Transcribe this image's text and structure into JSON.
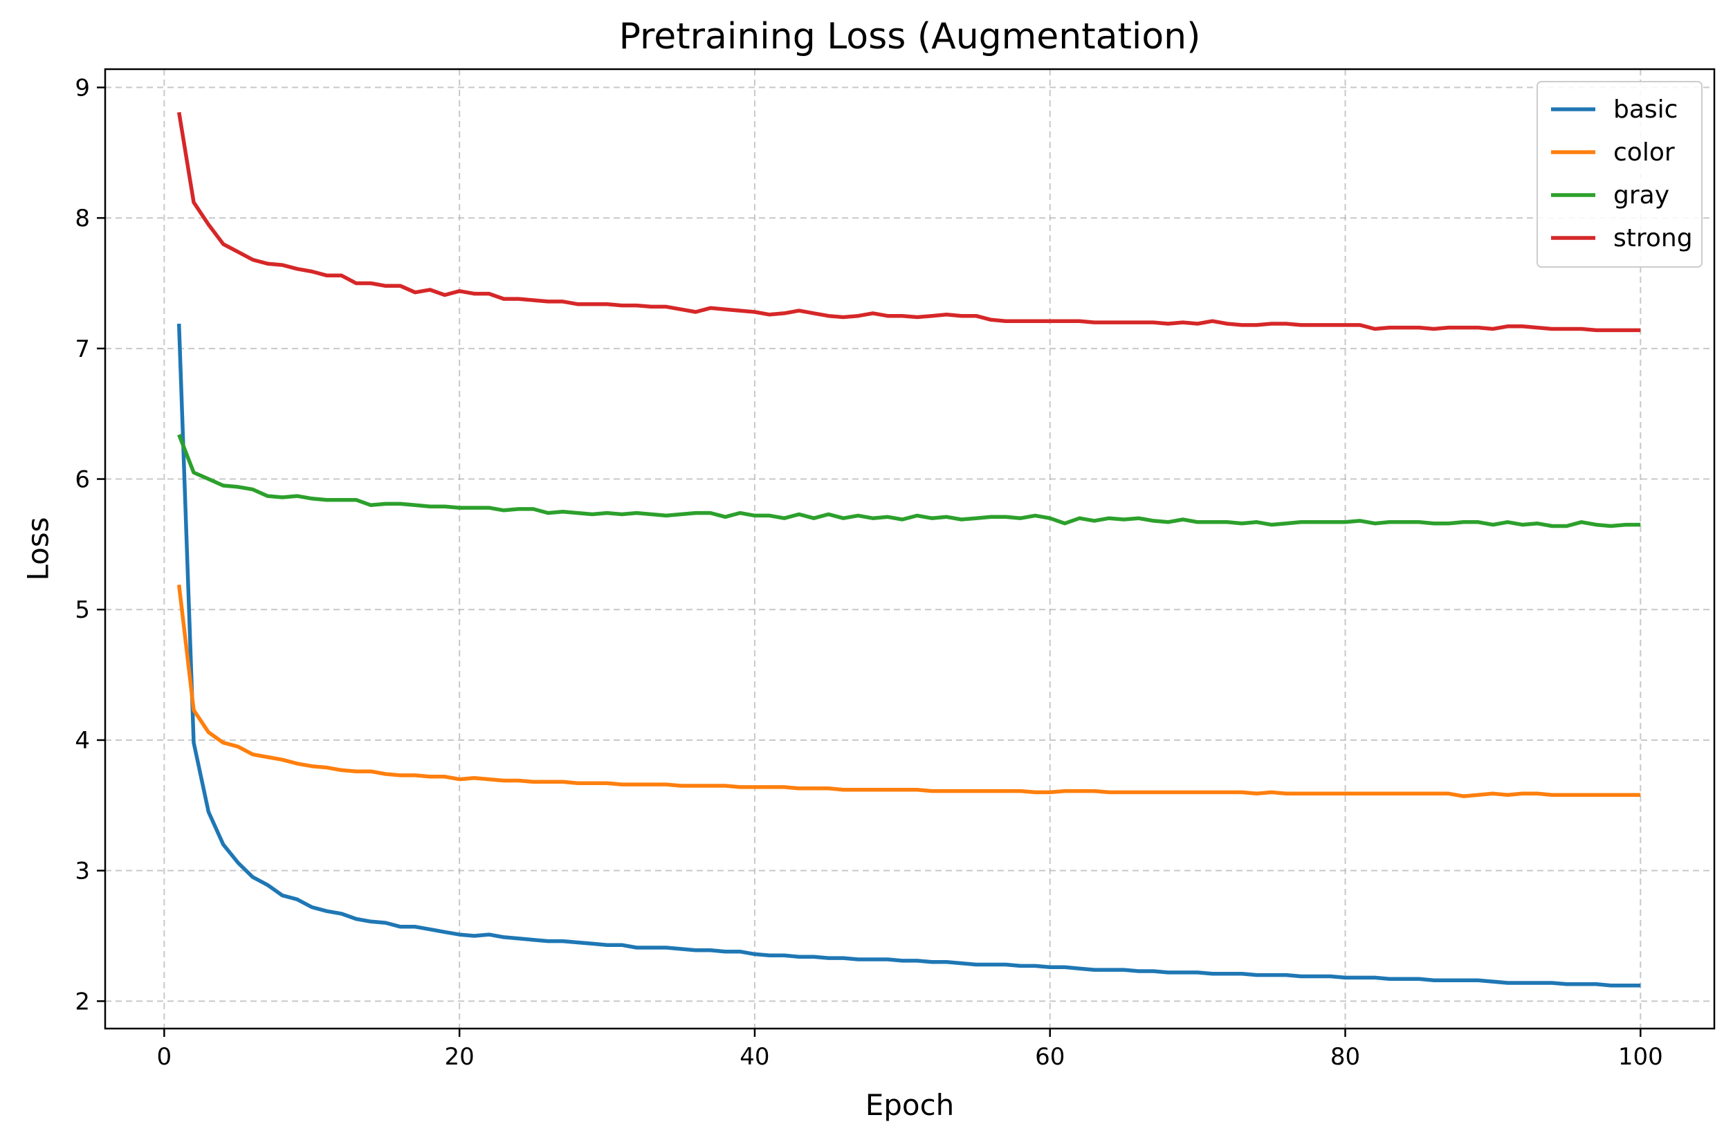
{
  "chart_data": {
    "type": "line",
    "title": "Pretraining Loss (Augmentation)",
    "xlabel": "Epoch",
    "ylabel": "Loss",
    "xlim": [
      -4,
      105
    ],
    "ylim": [
      1.79,
      9.14
    ],
    "xticks": [
      0,
      20,
      40,
      60,
      80,
      100
    ],
    "yticks": [
      2,
      3,
      4,
      5,
      6,
      7,
      8,
      9
    ],
    "grid": true,
    "legend_position": "top-right",
    "x": [
      1,
      2,
      3,
      4,
      5,
      6,
      7,
      8,
      9,
      10,
      11,
      12,
      13,
      14,
      15,
      16,
      17,
      18,
      19,
      20,
      21,
      22,
      23,
      24,
      25,
      26,
      27,
      28,
      29,
      30,
      31,
      32,
      33,
      34,
      35,
      36,
      37,
      38,
      39,
      40,
      41,
      42,
      43,
      44,
      45,
      46,
      47,
      48,
      49,
      50,
      51,
      52,
      53,
      54,
      55,
      56,
      57,
      58,
      59,
      60,
      61,
      62,
      63,
      64,
      65,
      66,
      67,
      68,
      69,
      70,
      71,
      72,
      73,
      74,
      75,
      76,
      77,
      78,
      79,
      80,
      81,
      82,
      83,
      84,
      85,
      86,
      87,
      88,
      89,
      90,
      91,
      92,
      93,
      94,
      95,
      96,
      97,
      98,
      99,
      100
    ],
    "series": [
      {
        "name": "basic",
        "color": "#1f77b4",
        "values": [
          7.19,
          3.98,
          3.45,
          3.2,
          3.06,
          2.95,
          2.89,
          2.81,
          2.78,
          2.72,
          2.69,
          2.67,
          2.63,
          2.61,
          2.6,
          2.57,
          2.57,
          2.55,
          2.53,
          2.51,
          2.5,
          2.51,
          2.49,
          2.48,
          2.47,
          2.46,
          2.46,
          2.45,
          2.44,
          2.43,
          2.43,
          2.41,
          2.41,
          2.41,
          2.4,
          2.39,
          2.39,
          2.38,
          2.38,
          2.36,
          2.35,
          2.35,
          2.34,
          2.34,
          2.33,
          2.33,
          2.32,
          2.32,
          2.32,
          2.31,
          2.31,
          2.3,
          2.3,
          2.29,
          2.28,
          2.28,
          2.28,
          2.27,
          2.27,
          2.26,
          2.26,
          2.25,
          2.24,
          2.24,
          2.24,
          2.23,
          2.23,
          2.22,
          2.22,
          2.22,
          2.21,
          2.21,
          2.21,
          2.2,
          2.2,
          2.2,
          2.19,
          2.19,
          2.19,
          2.18,
          2.18,
          2.18,
          2.17,
          2.17,
          2.17,
          2.16,
          2.16,
          2.16,
          2.16,
          2.15,
          2.14,
          2.14,
          2.14,
          2.14,
          2.13,
          2.13,
          2.13,
          2.12,
          2.12,
          2.12
        ]
      },
      {
        "name": "color",
        "color": "#ff7f0e",
        "values": [
          5.19,
          4.23,
          4.06,
          3.98,
          3.95,
          3.89,
          3.87,
          3.85,
          3.82,
          3.8,
          3.79,
          3.77,
          3.76,
          3.76,
          3.74,
          3.73,
          3.73,
          3.72,
          3.72,
          3.7,
          3.71,
          3.7,
          3.69,
          3.69,
          3.68,
          3.68,
          3.68,
          3.67,
          3.67,
          3.67,
          3.66,
          3.66,
          3.66,
          3.66,
          3.65,
          3.65,
          3.65,
          3.65,
          3.64,
          3.64,
          3.64,
          3.64,
          3.63,
          3.63,
          3.63,
          3.62,
          3.62,
          3.62,
          3.62,
          3.62,
          3.62,
          3.61,
          3.61,
          3.61,
          3.61,
          3.61,
          3.61,
          3.61,
          3.6,
          3.6,
          3.61,
          3.61,
          3.61,
          3.6,
          3.6,
          3.6,
          3.6,
          3.6,
          3.6,
          3.6,
          3.6,
          3.6,
          3.6,
          3.59,
          3.6,
          3.59,
          3.59,
          3.59,
          3.59,
          3.59,
          3.59,
          3.59,
          3.59,
          3.59,
          3.59,
          3.59,
          3.59,
          3.57,
          3.58,
          3.59,
          3.58,
          3.59,
          3.59,
          3.58,
          3.58,
          3.58,
          3.58,
          3.58,
          3.58,
          3.58
        ]
      },
      {
        "name": "gray",
        "color": "#2ca02c",
        "values": [
          6.34,
          6.05,
          6.0,
          5.95,
          5.94,
          5.92,
          5.87,
          5.86,
          5.87,
          5.85,
          5.84,
          5.84,
          5.84,
          5.8,
          5.81,
          5.81,
          5.8,
          5.79,
          5.79,
          5.78,
          5.78,
          5.78,
          5.76,
          5.77,
          5.77,
          5.74,
          5.75,
          5.74,
          5.73,
          5.74,
          5.73,
          5.74,
          5.73,
          5.72,
          5.73,
          5.74,
          5.74,
          5.71,
          5.74,
          5.72,
          5.72,
          5.7,
          5.73,
          5.7,
          5.73,
          5.7,
          5.72,
          5.7,
          5.71,
          5.69,
          5.72,
          5.7,
          5.71,
          5.69,
          5.7,
          5.71,
          5.71,
          5.7,
          5.72,
          5.7,
          5.66,
          5.7,
          5.68,
          5.7,
          5.69,
          5.7,
          5.68,
          5.67,
          5.69,
          5.67,
          5.67,
          5.67,
          5.66,
          5.67,
          5.65,
          5.66,
          5.67,
          5.67,
          5.67,
          5.67,
          5.68,
          5.66,
          5.67,
          5.67,
          5.67,
          5.66,
          5.66,
          5.67,
          5.67,
          5.65,
          5.67,
          5.65,
          5.66,
          5.64,
          5.64,
          5.67,
          5.65,
          5.64,
          5.65,
          5.65
        ]
      },
      {
        "name": "strong",
        "color": "#d62728",
        "values": [
          8.81,
          8.12,
          7.95,
          7.8,
          7.74,
          7.68,
          7.65,
          7.64,
          7.61,
          7.59,
          7.56,
          7.56,
          7.5,
          7.5,
          7.48,
          7.48,
          7.43,
          7.45,
          7.41,
          7.44,
          7.42,
          7.42,
          7.38,
          7.38,
          7.37,
          7.36,
          7.36,
          7.34,
          7.34,
          7.34,
          7.33,
          7.33,
          7.32,
          7.32,
          7.3,
          7.28,
          7.31,
          7.3,
          7.29,
          7.28,
          7.26,
          7.27,
          7.29,
          7.27,
          7.25,
          7.24,
          7.25,
          7.27,
          7.25,
          7.25,
          7.24,
          7.25,
          7.26,
          7.25,
          7.25,
          7.22,
          7.21,
          7.21,
          7.21,
          7.21,
          7.21,
          7.21,
          7.2,
          7.2,
          7.2,
          7.2,
          7.2,
          7.19,
          7.2,
          7.19,
          7.21,
          7.19,
          7.18,
          7.18,
          7.19,
          7.19,
          7.18,
          7.18,
          7.18,
          7.18,
          7.18,
          7.15,
          7.16,
          7.16,
          7.16,
          7.15,
          7.16,
          7.16,
          7.16,
          7.15,
          7.17,
          7.17,
          7.16,
          7.15,
          7.15,
          7.15,
          7.14,
          7.14,
          7.14,
          7.14
        ]
      }
    ]
  }
}
